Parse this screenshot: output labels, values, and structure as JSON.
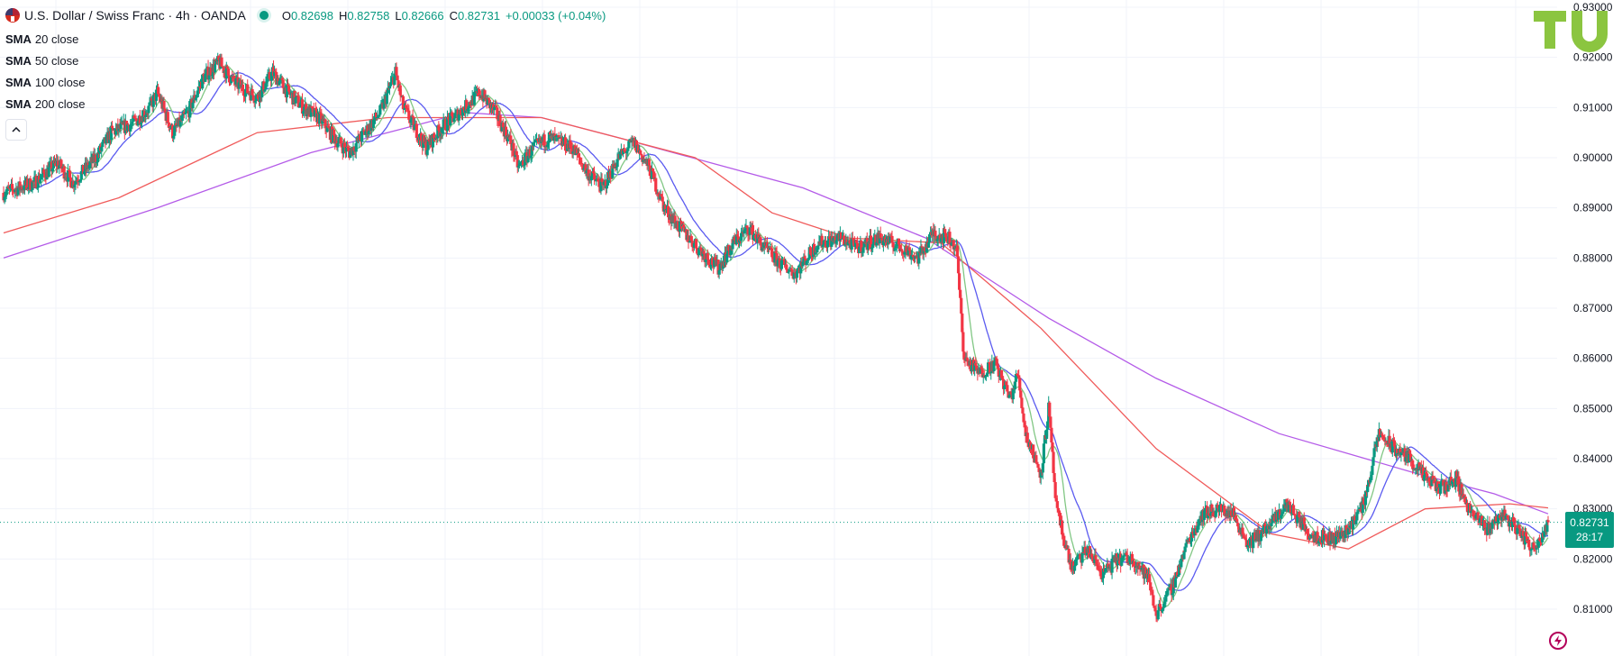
{
  "header": {
    "symbol_title": "U.S. Dollar / Swiss Franc · 4h · OANDA",
    "ohlc": {
      "o_label": "O",
      "o_value": "0.82698",
      "h_label": "H",
      "h_value": "0.82758",
      "l_label": "L",
      "l_value": "0.82666",
      "c_label": "C",
      "c_value": "0.82731",
      "change": "+0.00033 (+0.04%)"
    },
    "indicators": [
      {
        "name": "SMA",
        "params": "20 close"
      },
      {
        "name": "SMA",
        "params": "50 close"
      },
      {
        "name": "SMA",
        "params": "100 close"
      },
      {
        "name": "SMA",
        "params": "200 close"
      }
    ],
    "collapse_icon": "chevron-up-icon"
  },
  "last_price": {
    "value": "0.82731",
    "countdown": "28:17"
  },
  "colors": {
    "up": "#089981",
    "down": "#f23645",
    "sma20": "#81c784",
    "sma50": "#5b5bf0",
    "sma100": "#f05b5b",
    "sma200": "#b45be8",
    "logo": "#8bc540"
  },
  "chart_data": {
    "type": "candlestick",
    "instrument": "USD/CHF",
    "timeframe": "4h",
    "y_ticks": [
      "0.93000",
      "0.92000",
      "0.91000",
      "0.90000",
      "0.89000",
      "0.88000",
      "0.87000",
      "0.86000",
      "0.85000",
      "0.84000",
      "0.83000",
      "0.82000",
      "0.81000"
    ],
    "ylim": [
      0.804,
      0.93
    ],
    "last_close": 0.82731,
    "price_path": [
      [
        0,
        0.893
      ],
      [
        4,
        0.895
      ],
      [
        7,
        0.899
      ],
      [
        9,
        0.895
      ],
      [
        12,
        0.9
      ],
      [
        14,
        0.905
      ],
      [
        17,
        0.907
      ],
      [
        19,
        0.91
      ],
      [
        20,
        0.913
      ],
      [
        22,
        0.905
      ],
      [
        24,
        0.909
      ],
      [
        26,
        0.916
      ],
      [
        28,
        0.919
      ],
      [
        30,
        0.915
      ],
      [
        33,
        0.912
      ],
      [
        35,
        0.917
      ],
      [
        37,
        0.913
      ],
      [
        39,
        0.91
      ],
      [
        41,
        0.908
      ],
      [
        43,
        0.904
      ],
      [
        45,
        0.901
      ],
      [
        47,
        0.905
      ],
      [
        49,
        0.909
      ],
      [
        51,
        0.917
      ],
      [
        52,
        0.91
      ],
      [
        55,
        0.902
      ],
      [
        57,
        0.906
      ],
      [
        60,
        0.91
      ],
      [
        62,
        0.913
      ],
      [
        64,
        0.909
      ],
      [
        66,
        0.903
      ],
      [
        67,
        0.898
      ],
      [
        69,
        0.902
      ],
      [
        71,
        0.904
      ],
      [
        74,
        0.902
      ],
      [
        76,
        0.897
      ],
      [
        78,
        0.894
      ],
      [
        80,
        0.9
      ],
      [
        82,
        0.903
      ],
      [
        84,
        0.898
      ],
      [
        86,
        0.89
      ],
      [
        88,
        0.886
      ],
      [
        91,
        0.881
      ],
      [
        93,
        0.878
      ],
      [
        95,
        0.883
      ],
      [
        97,
        0.886
      ],
      [
        99,
        0.882
      ],
      [
        101,
        0.879
      ],
      [
        103,
        0.877
      ],
      [
        106,
        0.883
      ],
      [
        109,
        0.884
      ],
      [
        111,
        0.882
      ],
      [
        114,
        0.884
      ],
      [
        117,
        0.882
      ],
      [
        119,
        0.88
      ],
      [
        121,
        0.885
      ],
      [
        123,
        0.884
      ],
      [
        124,
        0.882
      ],
      [
        125,
        0.86
      ],
      [
        127,
        0.857
      ],
      [
        129,
        0.859
      ],
      [
        131,
        0.852
      ],
      [
        132,
        0.857
      ],
      [
        133,
        0.845
      ],
      [
        135,
        0.837
      ],
      [
        136,
        0.85
      ],
      [
        137,
        0.83
      ],
      [
        139,
        0.818
      ],
      [
        141,
        0.822
      ],
      [
        143,
        0.817
      ],
      [
        145,
        0.82
      ],
      [
        147,
        0.82
      ],
      [
        149,
        0.816
      ],
      [
        150,
        0.809
      ],
      [
        152,
        0.814
      ],
      [
        154,
        0.823
      ],
      [
        156,
        0.829
      ],
      [
        158,
        0.83
      ],
      [
        160,
        0.829
      ],
      [
        162,
        0.823
      ],
      [
        165,
        0.827
      ],
      [
        167,
        0.831
      ],
      [
        170,
        0.825
      ],
      [
        173,
        0.824
      ],
      [
        175,
        0.826
      ],
      [
        177,
        0.831
      ],
      [
        179,
        0.845
      ],
      [
        181,
        0.842
      ],
      [
        183,
        0.84
      ],
      [
        185,
        0.836
      ],
      [
        187,
        0.834
      ],
      [
        189,
        0.836
      ],
      [
        191,
        0.829
      ],
      [
        193,
        0.826
      ],
      [
        195,
        0.829
      ],
      [
        197,
        0.826
      ],
      [
        199,
        0.822
      ],
      [
        201,
        0.827
      ]
    ],
    "series": [
      {
        "name": "SMA 20 close",
        "period": 20
      },
      {
        "name": "SMA 50 close",
        "period": 50
      },
      {
        "name": "SMA 100 close",
        "period": 100
      },
      {
        "name": "SMA 200 close",
        "period": 200
      }
    ],
    "sma100_path": [
      [
        0,
        0.885
      ],
      [
        15,
        0.892
      ],
      [
        33,
        0.905
      ],
      [
        50,
        0.908
      ],
      [
        70,
        0.908
      ],
      [
        90,
        0.9
      ],
      [
        100,
        0.889
      ],
      [
        110,
        0.884
      ],
      [
        122,
        0.883
      ],
      [
        135,
        0.866
      ],
      [
        150,
        0.842
      ],
      [
        165,
        0.825
      ],
      [
        175,
        0.822
      ],
      [
        185,
        0.83
      ],
      [
        196,
        0.831
      ],
      [
        201,
        0.8302
      ]
    ],
    "sma200_path": [
      [
        0,
        0.88
      ],
      [
        20,
        0.89
      ],
      [
        40,
        0.901
      ],
      [
        60,
        0.909
      ],
      [
        70,
        0.908
      ],
      [
        80,
        0.904
      ],
      [
        92,
        0.899
      ],
      [
        104,
        0.894
      ],
      [
        120,
        0.884
      ],
      [
        136,
        0.868
      ],
      [
        150,
        0.856
      ],
      [
        166,
        0.845
      ],
      [
        184,
        0.837
      ],
      [
        194,
        0.833
      ],
      [
        201,
        0.829
      ]
    ]
  }
}
